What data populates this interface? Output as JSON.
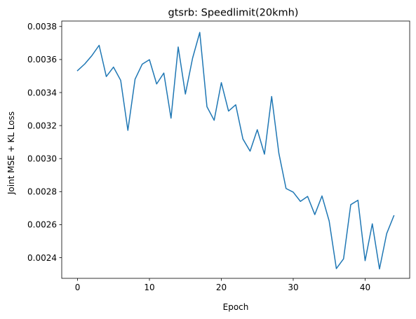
{
  "chart_data": {
    "type": "line",
    "title": "gtsrb: Speedlimit(20kmh)",
    "xlabel": "Epoch",
    "ylabel": "Joint MSE + KL Loss",
    "xlim": [
      -2.2,
      46.2
    ],
    "ylim": [
      0.002275,
      0.003833
    ],
    "x_ticks": [
      0,
      10,
      20,
      30,
      40
    ],
    "x_tick_labels": [
      "0",
      "10",
      "20",
      "30",
      "40"
    ],
    "y_ticks": [
      0.0024,
      0.0026,
      0.0028,
      0.003,
      0.0032,
      0.0034,
      0.0036,
      0.0038
    ],
    "y_tick_labels": [
      "0.0024",
      "0.0026",
      "0.0028",
      "0.0030",
      "0.0032",
      "0.0034",
      "0.0036",
      "0.0038"
    ],
    "grid": false,
    "series": [
      {
        "color": "#1f77b4",
        "x": [
          0,
          1,
          2,
          3,
          4,
          5,
          6,
          7,
          8,
          9,
          10,
          11,
          12,
          13,
          14,
          15,
          16,
          17,
          18,
          19,
          20,
          21,
          22,
          23,
          24,
          25,
          26,
          27,
          28,
          29,
          30,
          31,
          32,
          33,
          34,
          35,
          36,
          37,
          38,
          39,
          40,
          41,
          42,
          43,
          44
        ],
        "y": [
          0.003533,
          0.003573,
          0.003624,
          0.003686,
          0.003497,
          0.003554,
          0.003474,
          0.003171,
          0.003481,
          0.003572,
          0.003599,
          0.003452,
          0.003518,
          0.003245,
          0.003676,
          0.003391,
          0.003608,
          0.003764,
          0.003314,
          0.003232,
          0.00346,
          0.003288,
          0.003326,
          0.003119,
          0.003045,
          0.003175,
          0.003027,
          0.003376,
          0.003033,
          0.002819,
          0.002797,
          0.002741,
          0.002771,
          0.002661,
          0.002774,
          0.002622,
          0.002334,
          0.002393,
          0.002721,
          0.002748,
          0.002382,
          0.002605,
          0.002332,
          0.002546,
          0.002654
        ]
      }
    ]
  }
}
